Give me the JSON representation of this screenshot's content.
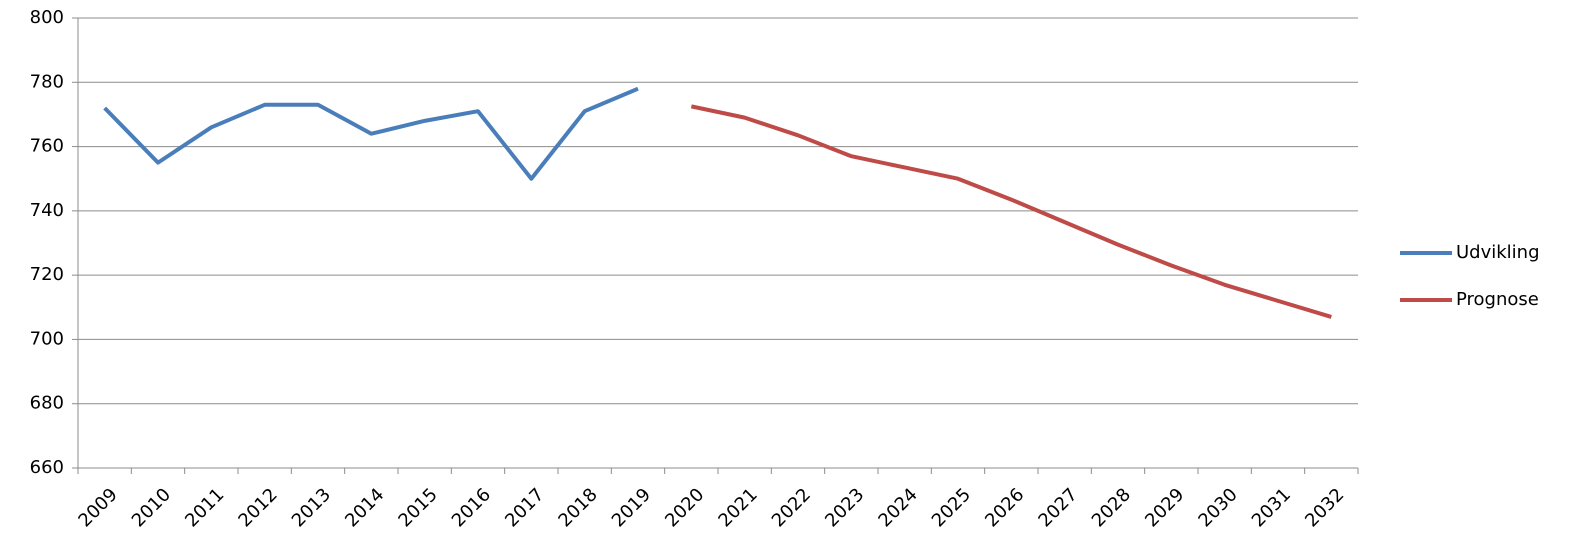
{
  "chart_data": {
    "type": "line",
    "categories": [
      "2009",
      "2010",
      "2011",
      "2012",
      "2013",
      "2014",
      "2015",
      "2016",
      "2017",
      "2018",
      "2019",
      "2020",
      "2021",
      "2022",
      "2023",
      "2024",
      "2025",
      "2026",
      "2027",
      "2028",
      "2029",
      "2030",
      "2031",
      "2032"
    ],
    "series": [
      {
        "name": "Udvikling",
        "color": "#4a7ebb",
        "values": [
          772,
          755,
          766,
          773,
          773,
          764,
          768,
          771,
          750,
          771,
          778,
          null,
          null,
          null,
          null,
          null,
          null,
          null,
          null,
          null,
          null,
          null,
          null,
          null
        ]
      },
      {
        "name": "Prognose",
        "color": "#be4b48",
        "values": [
          null,
          null,
          null,
          null,
          null,
          null,
          null,
          null,
          null,
          null,
          null,
          772.5,
          769,
          763.5,
          757,
          753.5,
          750,
          743.5,
          736.5,
          729.5,
          723,
          717,
          712,
          707
        ]
      }
    ],
    "ylim": [
      660,
      800
    ],
    "yticks": [
      660,
      680,
      700,
      720,
      740,
      760,
      780,
      800
    ],
    "grid": true,
    "legend": "right"
  }
}
